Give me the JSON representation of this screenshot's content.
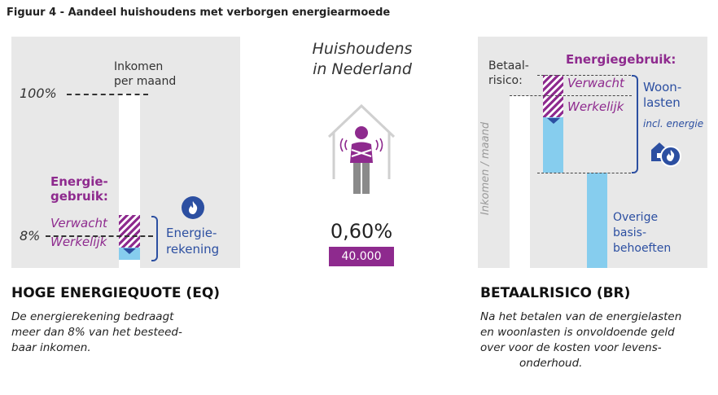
{
  "figure_title": "Figuur 4 - Aandeel huishoudens met verborgen energiearmoede",
  "left_panel": {
    "income_label_line1": "Inkomen",
    "income_label_line2": "per maand",
    "pct_100": "100%",
    "pct_8": "8%",
    "energy_usage_line1": "Energie-",
    "energy_usage_line2": "gebruik:",
    "expected": "Verwacht",
    "actual": "Werkelijk",
    "energy_bill_line1": "Energie-",
    "energy_bill_line2": "rekening"
  },
  "center": {
    "title_line1": "Huishoudens",
    "title_line2": "in Nederland",
    "percentage": "0,60%",
    "count": "40.000"
  },
  "right_panel": {
    "payment_risk_line1": "Betaal-",
    "payment_risk_line2": "risico:",
    "energy_usage": "Energiegebruik:",
    "expected": "Verwacht",
    "actual": "Werkelijk",
    "housing_line1": "Woon-",
    "housing_line2": "lasten",
    "housing_incl": "incl. energie",
    "vertical_label": "Inkomen / maand",
    "other_line1": "Overige",
    "other_line2": "basis-",
    "other_line3": "behoeften"
  },
  "eq": {
    "title": "HOGE ENERGIEQUOTE (EQ)",
    "desc_line1": "De energierekening bedraagt",
    "desc_line2": "meer dan 8% van het besteed-",
    "desc_line3": "baar inkomen."
  },
  "br": {
    "title": "BETAALRISICO (BR)",
    "desc_line1": "Na het betalen van de energielasten",
    "desc_line2": "en woonlasten is onvoldoende geld",
    "desc_line3": "over voor de kosten voor levens-",
    "desc_line4": "onderhoud."
  },
  "colors": {
    "purple": "#8e2a8e",
    "blue": "#2c4fa1",
    "lightblue": "#86cdee",
    "panel": "#e8e8e8"
  },
  "icons": [
    "flame-icon",
    "person-shivering-icon",
    "house-outline-icon",
    "house-flame-icon"
  ]
}
